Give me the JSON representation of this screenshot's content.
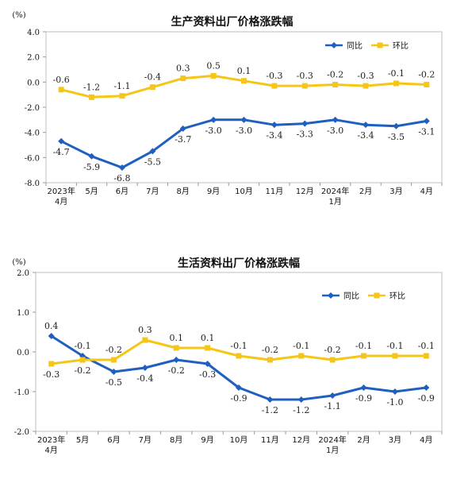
{
  "chart_data": [
    {
      "type": "line",
      "title": "生产资料出厂价格涨跌幅",
      "ylabel": "(%)",
      "ylim": [
        -8.0,
        4.0
      ],
      "yticks": [
        "4.0",
        "2.0",
        "0.0",
        "-2.0",
        "-4.0",
        "-6.0",
        "-8.0"
      ],
      "ytick_values": [
        4,
        2,
        0,
        -2,
        -4,
        -6,
        -8
      ],
      "categories": [
        [
          "2023年",
          "4月"
        ],
        [
          "5月"
        ],
        [
          "6月"
        ],
        [
          "7月"
        ],
        [
          "8月"
        ],
        [
          "9月"
        ],
        [
          "10月"
        ],
        [
          "11月"
        ],
        [
          "12月"
        ],
        [
          "2024年",
          "1月"
        ],
        [
          "2月"
        ],
        [
          "3月"
        ],
        [
          "4月"
        ]
      ],
      "legend_position": "top-right",
      "series": [
        {
          "name": "同比",
          "color": "#1F5FC0",
          "marker": "diamond",
          "values": [
            -4.7,
            -5.9,
            -6.8,
            -5.5,
            -3.7,
            -3.0,
            -3.0,
            -3.4,
            -3.3,
            -3.0,
            -3.4,
            -3.5,
            -3.1
          ],
          "labels": [
            "-4.7",
            "-5.9",
            "-6.8",
            "-5.5",
            "-3.7",
            "-3.0",
            "-3.0",
            "-3.4",
            "-3.3",
            "-3.0",
            "-3.4",
            "-3.5",
            "-3.1"
          ],
          "label_pos": [
            "below",
            "below",
            "below",
            "below",
            "below",
            "below",
            "below",
            "below",
            "below",
            "below",
            "below",
            "below",
            "below"
          ]
        },
        {
          "name": "环比",
          "color": "#F5C518",
          "marker": "square",
          "values": [
            -0.6,
            -1.2,
            -1.1,
            -0.4,
            0.3,
            0.5,
            0.1,
            -0.3,
            -0.3,
            -0.2,
            -0.3,
            -0.1,
            -0.2
          ],
          "labels": [
            "-0.6",
            "-1.2",
            "-1.1",
            "-0.4",
            "0.3",
            "0.5",
            "0.1",
            "-0.3",
            "-0.3",
            "-0.2",
            "-0.3",
            "-0.1",
            "-0.2"
          ],
          "label_pos": [
            "above",
            "above",
            "above",
            "above",
            "above",
            "above",
            "above",
            "above",
            "above",
            "above",
            "above",
            "above",
            "above"
          ]
        }
      ]
    },
    {
      "type": "line",
      "title": "生活资料出厂价格涨跌幅",
      "ylabel": "(%)",
      "ylim": [
        -2.0,
        2.0
      ],
      "yticks": [
        "2.0",
        "1.0",
        "0.0",
        "-1.0",
        "-2.0"
      ],
      "ytick_values": [
        2,
        1,
        0,
        -1,
        -2
      ],
      "categories": [
        [
          "2023年",
          "4月"
        ],
        [
          "5月"
        ],
        [
          "6月"
        ],
        [
          "7月"
        ],
        [
          "8月"
        ],
        [
          "9月"
        ],
        [
          "10月"
        ],
        [
          "11月"
        ],
        [
          "12月"
        ],
        [
          "2024年",
          "1月"
        ],
        [
          "2月"
        ],
        [
          "3月"
        ],
        [
          "4月"
        ]
      ],
      "legend_position": "top-right",
      "series": [
        {
          "name": "同比",
          "color": "#1F5FC0",
          "marker": "diamond",
          "values": [
            0.4,
            -0.1,
            -0.5,
            -0.4,
            -0.2,
            -0.3,
            -0.9,
            -1.2,
            -1.2,
            -1.1,
            -0.9,
            -1.0,
            -0.9
          ],
          "labels": [
            "0.4",
            "-0.1",
            "-0.5",
            "-0.4",
            "-0.2",
            "-0.3",
            "-0.9",
            "-1.2",
            "-1.2",
            "-1.1",
            "-0.9",
            "-1.0",
            "-0.9"
          ],
          "label_pos": [
            "above",
            "above",
            "below",
            "below",
            "below",
            "below",
            "below",
            "below",
            "below",
            "below",
            "below",
            "below",
            "below"
          ]
        },
        {
          "name": "环比",
          "color": "#F5C518",
          "marker": "square",
          "values": [
            -0.3,
            -0.2,
            -0.2,
            0.3,
            0.1,
            0.1,
            -0.1,
            -0.2,
            -0.1,
            -0.2,
            -0.1,
            -0.1,
            -0.1
          ],
          "labels": [
            "-0.3",
            "-0.2",
            "-0.2",
            "0.3",
            "0.1",
            "0.1",
            "-0.1",
            "-0.2",
            "-0.1",
            "-0.2",
            "-0.1",
            "-0.1",
            "-0.1"
          ],
          "label_pos": [
            "below",
            "below",
            "above",
            "above",
            "above",
            "above",
            "above",
            "above",
            "above",
            "above",
            "above",
            "above",
            "above"
          ]
        }
      ]
    }
  ]
}
